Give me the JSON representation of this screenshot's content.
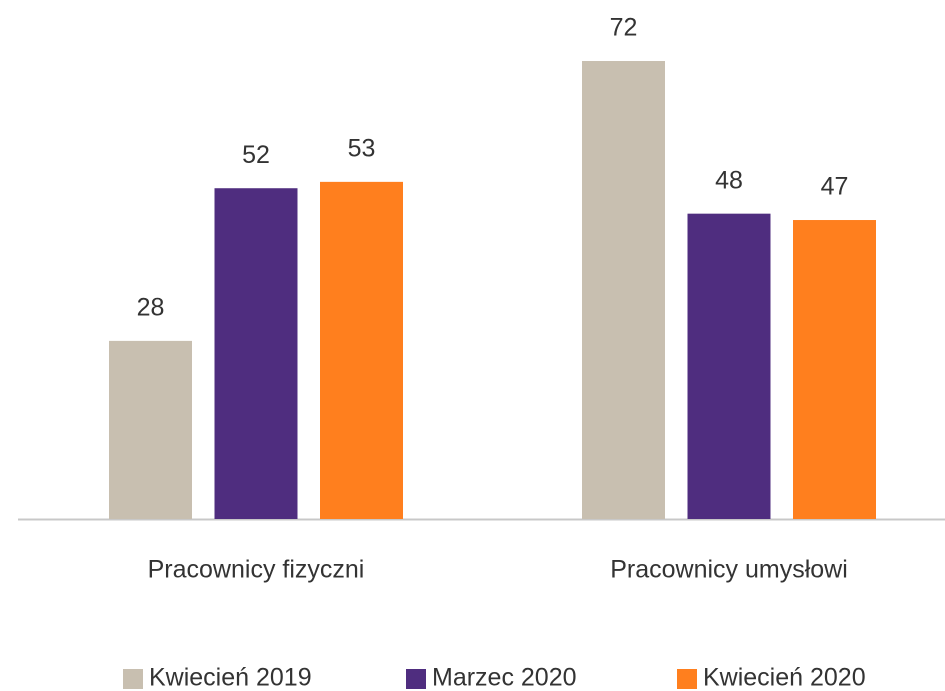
{
  "chart_data": {
    "type": "bar",
    "categories": [
      "Pracownicy fizyczni",
      "Pracownicy umysłowi"
    ],
    "series": [
      {
        "name": "Kwiecień 2019",
        "color": "#c8bfb0",
        "values": [
          28,
          72
        ]
      },
      {
        "name": "Marzec 2020",
        "color": "#4f2d7f",
        "values": [
          52,
          48
        ]
      },
      {
        "name": "Kwiecień 2020",
        "color": "#ff7f1e",
        "values": [
          53,
          47
        ]
      }
    ]
  }
}
